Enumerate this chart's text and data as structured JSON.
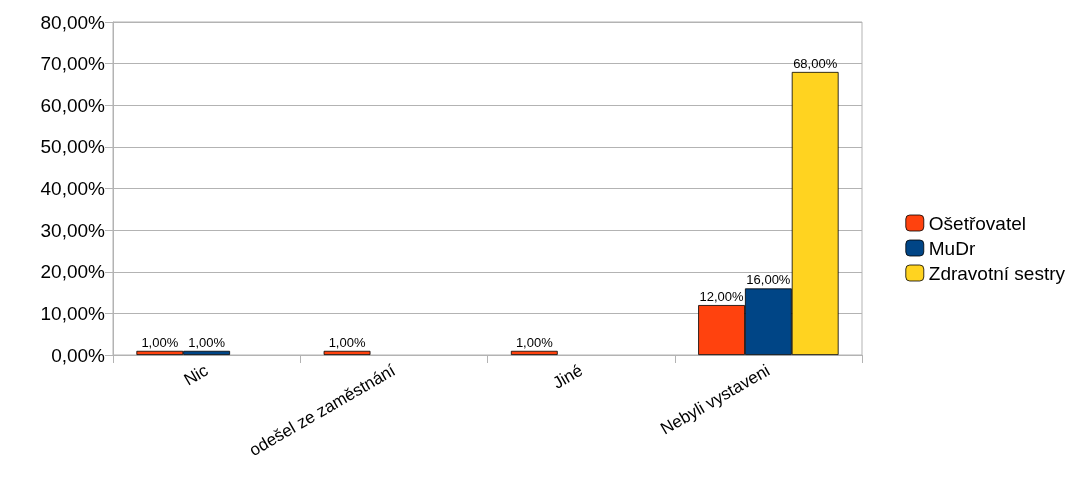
{
  "chart_data": {
    "type": "bar",
    "categories": [
      "Nic",
      "odešel ze zaměstnání",
      "Jiné",
      "Nebyli vystaveni"
    ],
    "series": [
      {
        "name": "Ošetřovatel",
        "color": "#ff420e",
        "values": [
          1,
          1,
          1,
          12
        ],
        "value_labels": [
          "1,00%",
          "1,00%",
          "1,00%",
          "12,00%"
        ]
      },
      {
        "name": "MuDr",
        "color": "#004586",
        "values": [
          1,
          null,
          null,
          16
        ],
        "value_labels": [
          "1,00%",
          null,
          null,
          "16,00%"
        ]
      },
      {
        "name": "Zdravotní sestry",
        "color": "#ffd320",
        "values": [
          null,
          null,
          null,
          68
        ],
        "value_labels": [
          null,
          null,
          null,
          "68,00%"
        ]
      }
    ],
    "ylim": [
      0,
      80
    ],
    "yticks": [
      {
        "value": 0,
        "label": "0,00%"
      },
      {
        "value": 10,
        "label": "10,00%"
      },
      {
        "value": 20,
        "label": "20,00%"
      },
      {
        "value": 30,
        "label": "30,00%"
      },
      {
        "value": 40,
        "label": "40,00%"
      },
      {
        "value": 50,
        "label": "50,00%"
      },
      {
        "value": 60,
        "label": "60,00%"
      },
      {
        "value": 70,
        "label": "70,00%"
      },
      {
        "value": 80,
        "label": "80,00%"
      }
    ],
    "grid": "y",
    "legend": "right"
  }
}
